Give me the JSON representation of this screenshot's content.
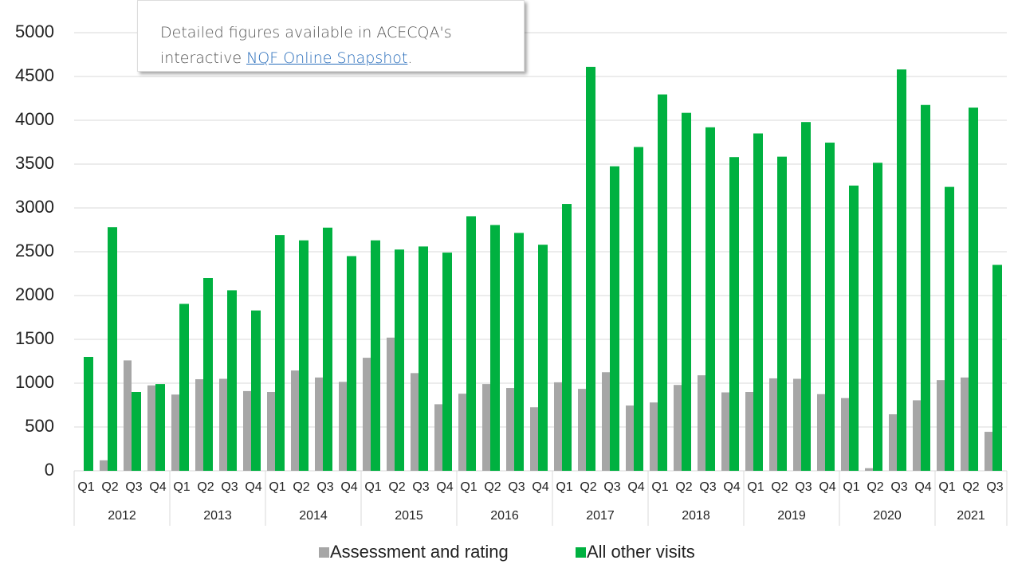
{
  "chart_data": {
    "type": "bar",
    "groups": [
      {
        "label": "2012",
        "categories": [
          "Q1",
          "Q2",
          "Q3",
          "Q4"
        ]
      },
      {
        "label": "2013",
        "categories": [
          "Q1",
          "Q2",
          "Q3",
          "Q4"
        ]
      },
      {
        "label": "2014",
        "categories": [
          "Q1",
          "Q2",
          "Q3",
          "Q4"
        ]
      },
      {
        "label": "2015",
        "categories": [
          "Q1",
          "Q2",
          "Q3",
          "Q4"
        ]
      },
      {
        "label": "2016",
        "categories": [
          "Q1",
          "Q2",
          "Q3",
          "Q4"
        ]
      },
      {
        "label": "2017",
        "categories": [
          "Q1",
          "Q2",
          "Q3",
          "Q4"
        ]
      },
      {
        "label": "2018",
        "categories": [
          "Q1",
          "Q2",
          "Q3",
          "Q4"
        ]
      },
      {
        "label": "2019",
        "categories": [
          "Q1",
          "Q2",
          "Q3",
          "Q4"
        ]
      },
      {
        "label": "2020",
        "categories": [
          "Q1",
          "Q2",
          "Q3",
          "Q4"
        ]
      },
      {
        "label": "2021",
        "categories": [
          "Q1",
          "Q2",
          "Q3"
        ]
      }
    ],
    "series": [
      {
        "name": "Assessment and rating",
        "color": "#a6a6a6",
        "values": [
          0,
          120,
          1260,
          975,
          870,
          1045,
          1050,
          910,
          900,
          1145,
          1065,
          1015,
          1290,
          1520,
          1115,
          760,
          880,
          990,
          945,
          725,
          1010,
          935,
          1125,
          745,
          780,
          980,
          1090,
          895,
          900,
          1055,
          1050,
          875,
          830,
          30,
          645,
          805,
          1035,
          1065,
          445
        ]
      },
      {
        "name": "All other visits",
        "color": "#00b140",
        "values": [
          1300,
          2780,
          900,
          990,
          1905,
          2200,
          2060,
          1830,
          2690,
          2630,
          2775,
          2450,
          2630,
          2525,
          2560,
          2490,
          2905,
          2805,
          2715,
          2580,
          3045,
          4610,
          3475,
          3695,
          4295,
          4085,
          3920,
          3580,
          3850,
          3585,
          3980,
          3745,
          3255,
          3515,
          4580,
          4175,
          3240,
          4145,
          2350
        ]
      }
    ],
    "ylim": [
      0,
      5000
    ],
    "yticks": [
      0,
      500,
      1000,
      1500,
      2000,
      2500,
      3000,
      3500,
      4000,
      4500,
      5000
    ],
    "grid": true,
    "legend": "bottom",
    "annotation": {
      "line1": "Detailed figures available in ACECQA's",
      "line2_prefix": "interactive ",
      "link": "NQF Online Snapshot",
      "line2_suffix": "."
    }
  }
}
